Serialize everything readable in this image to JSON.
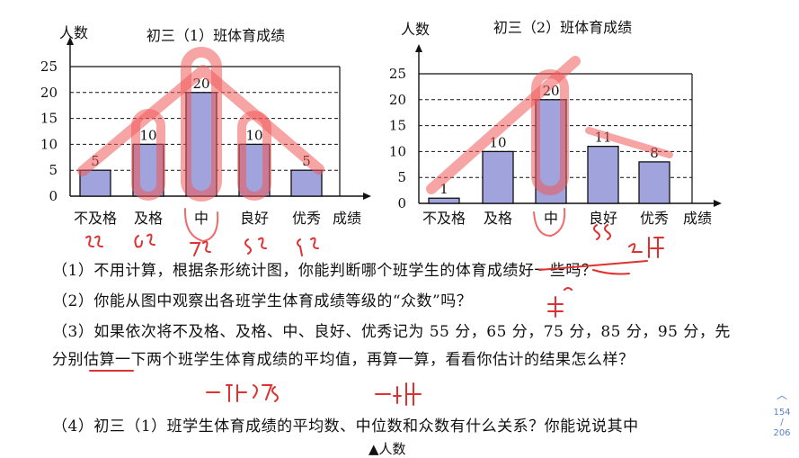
{
  "chart_data": [
    {
      "type": "bar",
      "title": "初三（1）班体育成绩",
      "ylabel": "人数",
      "xlabel": "成绩",
      "categories": [
        "不及格",
        "及格",
        "中",
        "良好",
        "优秀"
      ],
      "values": [
        5,
        10,
        20,
        10,
        5
      ],
      "yticks": [
        0,
        5,
        10,
        15,
        20,
        25
      ],
      "ylim": [
        0,
        25
      ],
      "grid": "dashed horizontal",
      "bar_color": "#a0a3dc"
    },
    {
      "type": "bar",
      "title": "初三（2）班体育成绩",
      "ylabel": "人数",
      "xlabel": "成绩",
      "categories": [
        "不及格",
        "及格",
        "中",
        "良好",
        "优秀"
      ],
      "values": [
        1,
        10,
        20,
        11,
        8
      ],
      "yticks": [
        0,
        5,
        10,
        15,
        20,
        25
      ],
      "ylim": [
        0,
        25
      ],
      "grid": "dashed horizontal",
      "bar_color": "#a0a3dc"
    }
  ],
  "questions": {
    "q1": "（1）不用计算，根据条形统计图，你能判断哪个班学生的体育成绩好一些吗？",
    "q2": "（2）你能从图中观察出各班学生体育成绩等级的“众数”吗？",
    "q3": "（3）如果依次将不及格、及格、中、良好、优秀记为 55 分，65 分，75 分，85 分，95 分，先分别估算一下两个班学生体育成绩的平均值，再算一算，看看你估计的结果怎么样？",
    "q4": "（4）初三（1）班学生体育成绩的平均数、中位数和众数有什么关系？你能说说其中",
    "next_fragment": "人数"
  },
  "pager": {
    "current": "154",
    "total": "206"
  },
  "colors": {
    "bar": "#a0a3dc",
    "highlight": "#f05a5a",
    "pager": "#5b7fc6"
  }
}
